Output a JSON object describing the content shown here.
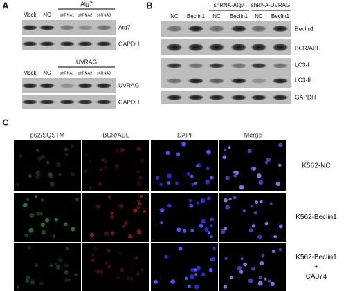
{
  "panels": {
    "A": {
      "label": "A",
      "blot1": {
        "group": "Atg7",
        "lanes": [
          "Mock",
          "NC",
          "shRNA1",
          "shRNA2",
          "shRNA3"
        ],
        "rows": [
          "Atg7",
          "GAPDH"
        ]
      },
      "blot2": {
        "group": "UVRAG",
        "lanes": [
          "Mock",
          "NC",
          "shRNA1",
          "shRNA2",
          "shRNA3"
        ],
        "rows": [
          "UVRAG",
          "GAPDH"
        ]
      }
    },
    "B": {
      "label": "B",
      "lanes": [
        "NC",
        "Beclin1",
        "NC",
        "Beclin1",
        "NC",
        "Beclin1"
      ],
      "groups": [
        "shRNA-Atg7",
        "shRNA-UVRAG"
      ],
      "rows": [
        "Beclin1",
        "BCR/ABL",
        "LC3-I",
        "LC3-II",
        "GAPDH"
      ]
    },
    "C": {
      "label": "C",
      "columns": [
        "p62/SQSTM",
        "BCR/ABL",
        "DAPI",
        "Merge"
      ],
      "rows": [
        [
          "K562-NC"
        ],
        [
          "K562-Beclin1"
        ],
        [
          "K562-Beclin1",
          "+",
          "CA074"
        ]
      ]
    }
  }
}
